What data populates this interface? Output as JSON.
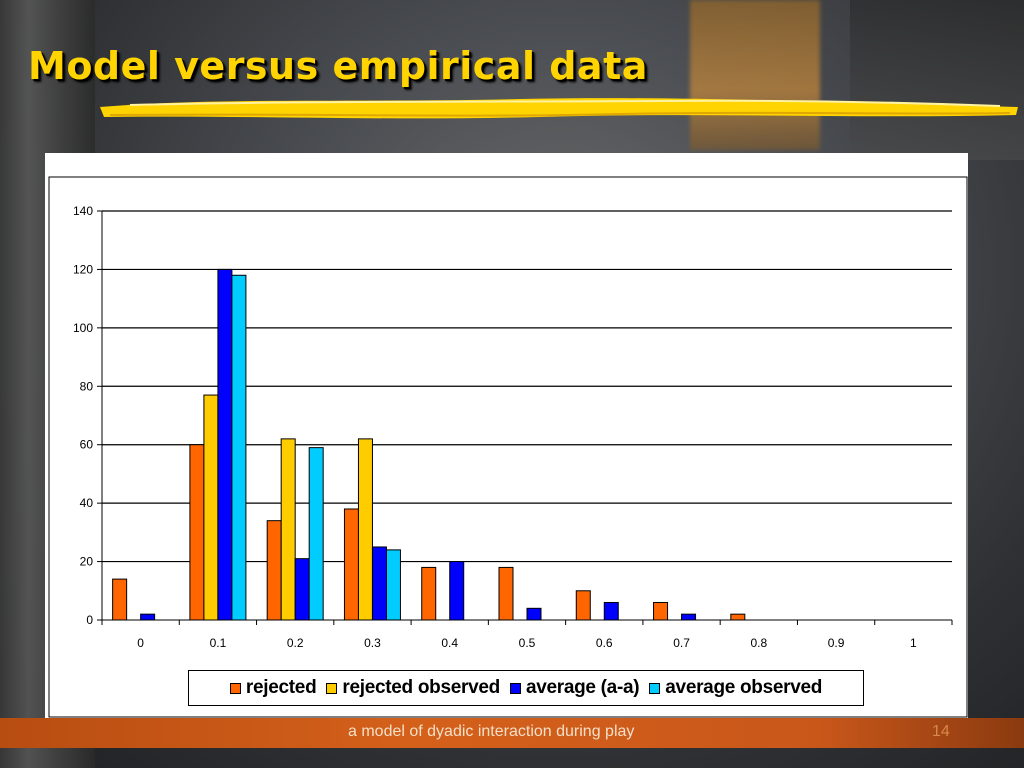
{
  "slide": {
    "title": "Model versus empirical data",
    "footer": "a model of dyadic interaction during play",
    "slide_number": "14",
    "colors": {
      "title": "#ffd400",
      "footer_bar": "#c9571a"
    }
  },
  "chart_data": {
    "type": "bar",
    "title": "",
    "xlabel": "",
    "ylabel": "",
    "categories": [
      "0",
      "0.1",
      "0.2",
      "0.3",
      "0.4",
      "0.5",
      "0.6",
      "0.7",
      "0.8",
      "0.9",
      "1"
    ],
    "ylim": [
      0,
      140
    ],
    "yticks": [
      "0",
      "20",
      "40",
      "60",
      "80",
      "100",
      "120",
      "140"
    ],
    "grid": true,
    "legend_position": "bottom",
    "series": [
      {
        "name": "rejected",
        "color": "#ff6600",
        "values": [
          14,
          60,
          34,
          38,
          18,
          18,
          10,
          6,
          2,
          0,
          0
        ]
      },
      {
        "name": "rejected observed",
        "color": "#ffcc00",
        "values": [
          0,
          77,
          62,
          62,
          0,
          0,
          0,
          0,
          0,
          0,
          0
        ]
      },
      {
        "name": "average (a-a)",
        "color": "#0000ff",
        "values": [
          2,
          120,
          21,
          25,
          20,
          4,
          6,
          2,
          0,
          0,
          0
        ]
      },
      {
        "name": "average observed",
        "color": "#00ccff",
        "values": [
          0,
          118,
          59,
          24,
          0,
          0,
          0,
          0,
          0,
          0,
          0
        ]
      }
    ]
  }
}
